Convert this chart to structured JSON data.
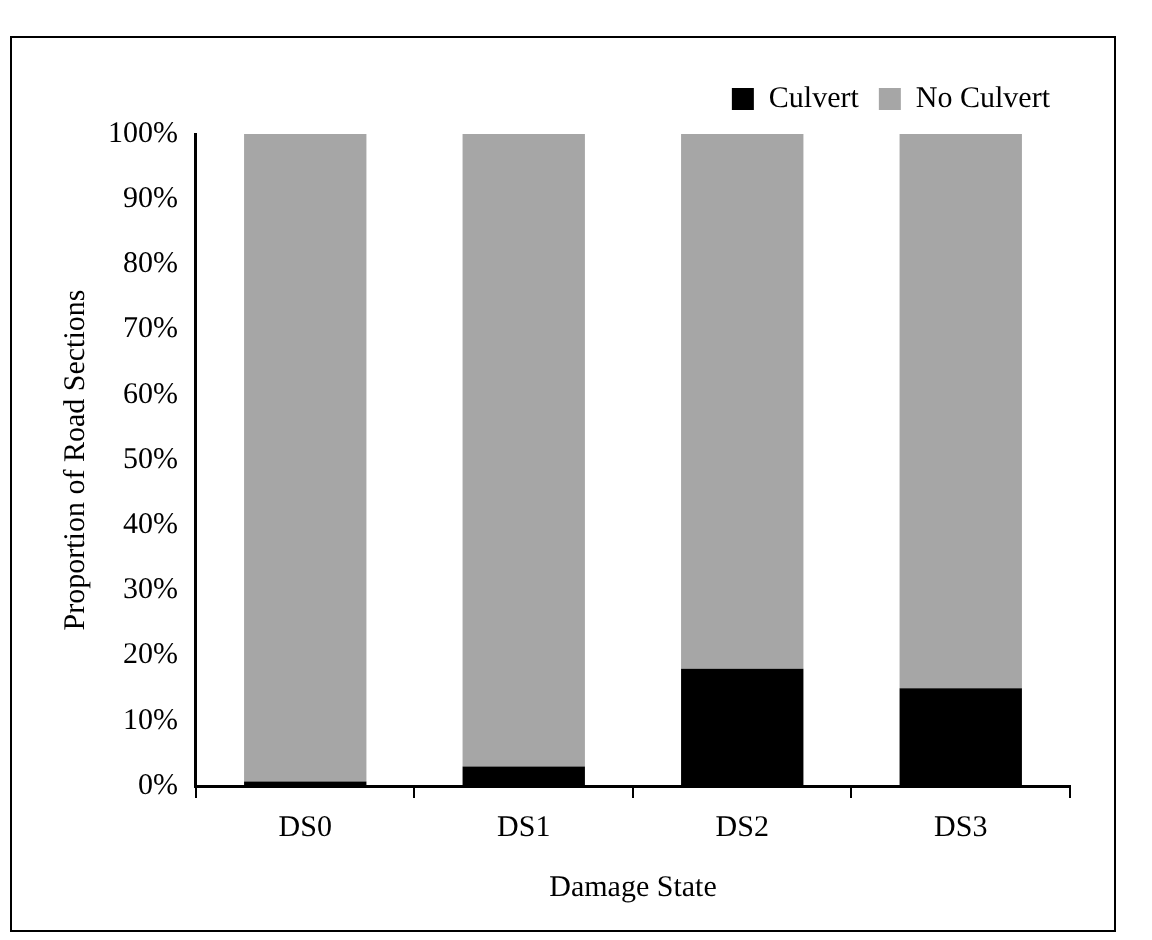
{
  "chart_data": {
    "type": "bar",
    "stacked": true,
    "xlabel": "Damage State",
    "ylabel": "Proportion of Road Sections",
    "categories": [
      "DS0",
      "DS1",
      "DS2",
      "DS3"
    ],
    "series": [
      {
        "name": "Culvert",
        "color": "#000000",
        "values": [
          0.7,
          3,
          18,
          15
        ]
      },
      {
        "name": "No Culvert",
        "color": "#a6a6a6",
        "values": [
          99.3,
          97,
          82,
          85
        ]
      }
    ],
    "ylim": [
      0,
      100
    ],
    "yticks": [
      {
        "value": 0,
        "label": "0%"
      },
      {
        "value": 10,
        "label": "10%"
      },
      {
        "value": 20,
        "label": "20%"
      },
      {
        "value": 30,
        "label": "30%"
      },
      {
        "value": 40,
        "label": "40%"
      },
      {
        "value": 50,
        "label": "50%"
      },
      {
        "value": 60,
        "label": "60%"
      },
      {
        "value": 70,
        "label": "70%"
      },
      {
        "value": 80,
        "label": "80%"
      },
      {
        "value": 90,
        "label": "90%"
      },
      {
        "value": 100,
        "label": "100%"
      }
    ],
    "grid": false,
    "legend": "top right"
  }
}
